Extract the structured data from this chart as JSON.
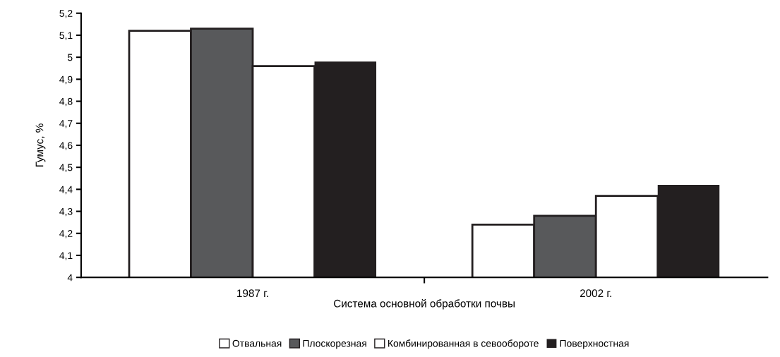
{
  "chart_data": {
    "type": "bar",
    "xlabel": "Система основной обработки почвы",
    "ylabel": "Гумус, %",
    "categories": [
      "1987 г.",
      "2002 г."
    ],
    "series": [
      {
        "name": "Отвальная",
        "color": "#ffffff",
        "values": [
          5.12,
          4.24
        ]
      },
      {
        "name": "Плоскорезная",
        "color": "#58595b",
        "values": [
          5.13,
          4.28
        ]
      },
      {
        "name": "Комбинированная в севообороте",
        "color": "#ffffff",
        "values": [
          4.96,
          4.37
        ]
      },
      {
        "name": "Поверхностная",
        "color": "#231f20",
        "values": [
          4.98,
          4.42
        ]
      }
    ],
    "ylim": [
      4,
      5.2
    ],
    "yticks": [
      {
        "value": 4,
        "label": "4"
      },
      {
        "value": 4.1,
        "label": "4,1"
      },
      {
        "value": 4.2,
        "label": "4,2"
      },
      {
        "value": 4.3,
        "label": "4,3"
      },
      {
        "value": 4.4,
        "label": "4,4"
      },
      {
        "value": 4.5,
        "label": "4,5"
      },
      {
        "value": 4.6,
        "label": "4,6"
      },
      {
        "value": 4.7,
        "label": "4,7"
      },
      {
        "value": 4.8,
        "label": "4,8"
      },
      {
        "value": 4.9,
        "label": "4,9"
      },
      {
        "value": 5,
        "label": "5"
      },
      {
        "value": 5.1,
        "label": "5,1"
      },
      {
        "value": 5.2,
        "label": "5,2"
      }
    ],
    "grid": false,
    "legend": "bottom"
  }
}
